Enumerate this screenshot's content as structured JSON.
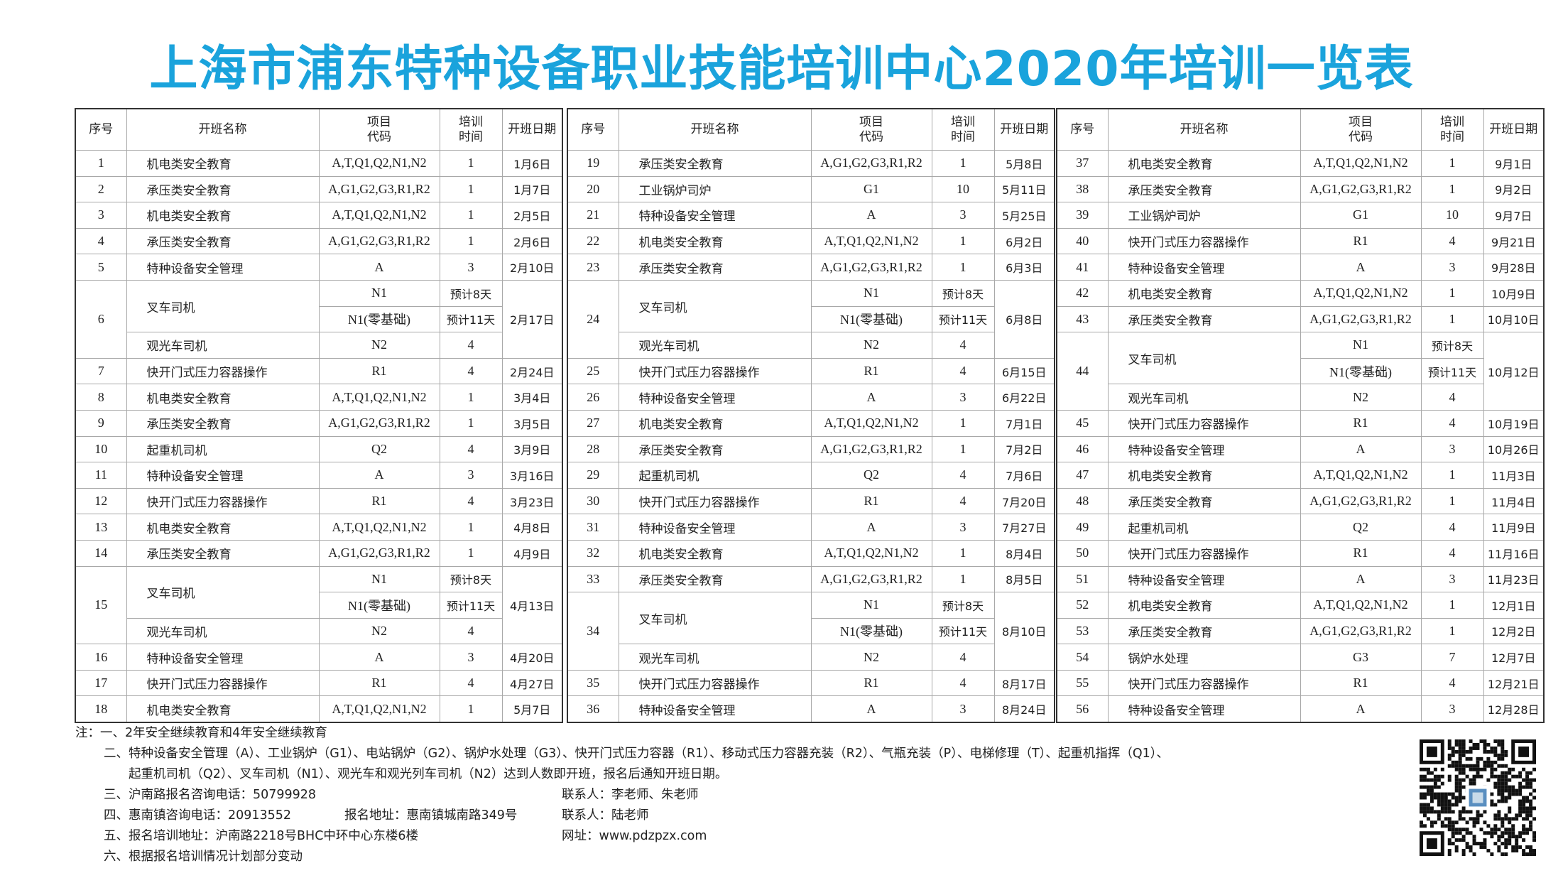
{
  "title": "上海市浦东特种设备职业技能培训中心2020年培训一览表",
  "headers": [
    "序号",
    "开班名称",
    "项目\n代码",
    "培训\n时间",
    "开班日期"
  ],
  "tables": [
    {
      "rows": [
        [
          "1",
          "机电类安全教育",
          "A,T,Q1,Q2,N1,N2",
          "1",
          "1月6日"
        ],
        [
          "2",
          "承压类安全教育",
          "A,G1,G2,G3,R1,R2",
          "1",
          "1月7日"
        ],
        [
          "3",
          "机电类安全教育",
          "A,T,Q1,Q2,N1,N2",
          "1",
          "2月5日"
        ],
        [
          "4",
          "承压类安全教育",
          "A,G1,G2,G3,R1,R2",
          "1",
          "2月6日"
        ],
        [
          "5",
          "特种设备安全管理",
          "A",
          "3",
          "2月10日"
        ],
        {
          "no": "6",
          "date": "2月17日",
          "items": [
            {
              "name": "叉车司机",
              "lines": [
                [
                  "N1",
                  "预计8天"
                ],
                [
                  "N1(零基础)",
                  "预计11天"
                ]
              ]
            },
            {
              "name": "观光车司机",
              "lines": [
                [
                  "N2",
                  "4"
                ]
              ]
            }
          ]
        },
        [
          "7",
          "快开门式压力容器操作",
          "R1",
          "4",
          "2月24日"
        ],
        [
          "8",
          "机电类安全教育",
          "A,T,Q1,Q2,N1,N2",
          "1",
          "3月4日"
        ],
        [
          "9",
          "承压类安全教育",
          "A,G1,G2,G3,R1,R2",
          "1",
          "3月5日"
        ],
        [
          "10",
          "起重机司机",
          "Q2",
          "4",
          "3月9日"
        ],
        [
          "11",
          "特种设备安全管理",
          "A",
          "3",
          "3月16日"
        ],
        [
          "12",
          "快开门式压力容器操作",
          "R1",
          "4",
          "3月23日"
        ],
        [
          "13",
          "机电类安全教育",
          "A,T,Q1,Q2,N1,N2",
          "1",
          "4月8日"
        ],
        [
          "14",
          "承压类安全教育",
          "A,G1,G2,G3,R1,R2",
          "1",
          "4月9日"
        ],
        {
          "no": "15",
          "date": "4月13日",
          "items": [
            {
              "name": "叉车司机",
              "lines": [
                [
                  "N1",
                  "预计8天"
                ],
                [
                  "N1(零基础)",
                  "预计11天"
                ]
              ]
            },
            {
              "name": "观光车司机",
              "lines": [
                [
                  "N2",
                  "4"
                ]
              ]
            }
          ]
        },
        [
          "16",
          "特种设备安全管理",
          "A",
          "3",
          "4月20日"
        ],
        [
          "17",
          "快开门式压力容器操作",
          "R1",
          "4",
          "4月27日"
        ],
        [
          "18",
          "机电类安全教育",
          "A,T,Q1,Q2,N1,N2",
          "1",
          "5月7日"
        ]
      ]
    },
    {
      "rows": [
        [
          "19",
          "承压类安全教育",
          "A,G1,G2,G3,R1,R2",
          "1",
          "5月8日"
        ],
        [
          "20",
          "工业锅炉司炉",
          "G1",
          "10",
          "5月11日"
        ],
        [
          "21",
          "特种设备安全管理",
          "A",
          "3",
          "5月25日"
        ],
        [
          "22",
          "机电类安全教育",
          "A,T,Q1,Q2,N1,N2",
          "1",
          "6月2日"
        ],
        [
          "23",
          "承压类安全教育",
          "A,G1,G2,G3,R1,R2",
          "1",
          "6月3日"
        ],
        {
          "no": "24",
          "date": "6月8日",
          "items": [
            {
              "name": "叉车司机",
              "lines": [
                [
                  "N1",
                  "预计8天"
                ],
                [
                  "N1(零基础)",
                  "预计11天"
                ]
              ]
            },
            {
              "name": "观光车司机",
              "lines": [
                [
                  "N2",
                  "4"
                ]
              ]
            }
          ]
        },
        [
          "25",
          "快开门式压力容器操作",
          "R1",
          "4",
          "6月15日"
        ],
        [
          "26",
          "特种设备安全管理",
          "A",
          "3",
          "6月22日"
        ],
        [
          "27",
          "机电类安全教育",
          "A,T,Q1,Q2,N1,N2",
          "1",
          "7月1日"
        ],
        [
          "28",
          "承压类安全教育",
          "A,G1,G2,G3,R1,R2",
          "1",
          "7月2日"
        ],
        [
          "29",
          "起重机司机",
          "Q2",
          "4",
          "7月6日"
        ],
        [
          "30",
          "快开门式压力容器操作",
          "R1",
          "4",
          "7月20日"
        ],
        [
          "31",
          "特种设备安全管理",
          "A",
          "3",
          "7月27日"
        ],
        [
          "32",
          "机电类安全教育",
          "A,T,Q1,Q2,N1,N2",
          "1",
          "8月4日"
        ],
        [
          "33",
          "承压类安全教育",
          "A,G1,G2,G3,R1,R2",
          "1",
          "8月5日"
        ],
        {
          "no": "34",
          "date": "8月10日",
          "items": [
            {
              "name": "叉车司机",
              "lines": [
                [
                  "N1",
                  "预计8天"
                ],
                [
                  "N1(零基础)",
                  "预计11天"
                ]
              ]
            },
            {
              "name": "观光车司机",
              "lines": [
                [
                  "N2",
                  "4"
                ]
              ]
            }
          ]
        },
        [
          "35",
          "快开门式压力容器操作",
          "R1",
          "4",
          "8月17日"
        ],
        [
          "36",
          "特种设备安全管理",
          "A",
          "3",
          "8月24日"
        ]
      ]
    },
    {
      "rows": [
        [
          "37",
          "机电类安全教育",
          "A,T,Q1,Q2,N1,N2",
          "1",
          "9月1日"
        ],
        [
          "38",
          "承压类安全教育",
          "A,G1,G2,G3,R1,R2",
          "1",
          "9月2日"
        ],
        [
          "39",
          "工业锅炉司炉",
          "G1",
          "10",
          "9月7日"
        ],
        [
          "40",
          "快开门式压力容器操作",
          "R1",
          "4",
          "9月21日"
        ],
        [
          "41",
          "特种设备安全管理",
          "A",
          "3",
          "9月28日"
        ],
        [
          "42",
          "机电类安全教育",
          "A,T,Q1,Q2,N1,N2",
          "1",
          "10月9日"
        ],
        [
          "43",
          "承压类安全教育",
          "A,G1,G2,G3,R1,R2",
          "1",
          "10月10日"
        ],
        {
          "no": "44",
          "date": "10月12日",
          "items": [
            {
              "name": "叉车司机",
              "lines": [
                [
                  "N1",
                  "预计8天"
                ],
                [
                  "N1(零基础)",
                  "预计11天"
                ]
              ]
            },
            {
              "name": "观光车司机",
              "lines": [
                [
                  "N2",
                  "4"
                ]
              ]
            }
          ]
        },
        [
          "45",
          "快开门式压力容器操作",
          "R1",
          "4",
          "10月19日"
        ],
        [
          "46",
          "特种设备安全管理",
          "A",
          "3",
          "10月26日"
        ],
        [
          "47",
          "机电类安全教育",
          "A,T,Q1,Q2,N1,N2",
          "1",
          "11月3日"
        ],
        [
          "48",
          "承压类安全教育",
          "A,G1,G2,G3,R1,R2",
          "1",
          "11月4日"
        ],
        [
          "49",
          "起重机司机",
          "Q2",
          "4",
          "11月9日"
        ],
        [
          "50",
          "快开门式压力容器操作",
          "R1",
          "4",
          "11月16日"
        ],
        [
          "51",
          "特种设备安全管理",
          "A",
          "3",
          "11月23日"
        ],
        [
          "52",
          "机电类安全教育",
          "A,T,Q1,Q2,N1,N2",
          "1",
          "12月1日"
        ],
        [
          "53",
          "承压类安全教育",
          "A,G1,G2,G3,R1,R2",
          "1",
          "12月2日"
        ],
        [
          "54",
          "锅炉水处理",
          "G3",
          "7",
          "12月7日"
        ],
        [
          "55",
          "快开门式压力容器操作",
          "R1",
          "4",
          "12月21日"
        ],
        [
          "56",
          "特种设备安全管理",
          "A",
          "3",
          "12月28日"
        ]
      ]
    }
  ],
  "notes": {
    "n1": "注：一、2年安全继续教育和4年安全继续教育",
    "n2a": "二、特种设备安全管理（A）、工业锅炉（G1）、电站锅炉（G2）、锅炉水处理（G3）、快开门式压力容器（R1）、移动式压力容器充装（R2）、气瓶充装（P）、电梯修理（T）、起重机指挥（Q1）、",
    "n2b": "起重机司机（Q2）、叉车司机（N1）、观光车和观光列车司机（N2）达到人数即开班，报名后通知开班日期。",
    "n3": "三、沪南路报名咨询电话：50799928",
    "n3c": "联系人：李老师、朱老师",
    "n4": "四、惠南镇咨询电话：20913552",
    "n4b": "报名地址：惠南镇城南路349号",
    "n4c": "联系人：陆老师",
    "n5": "五、报名培训地址：沪南路2218号BHC中环中心东楼6楼",
    "n5c": "网址：www.pdzpzx.com",
    "n6": "六、根据报名培训情况计划部分变动"
  },
  "qr_icon": "qr-code-icon"
}
